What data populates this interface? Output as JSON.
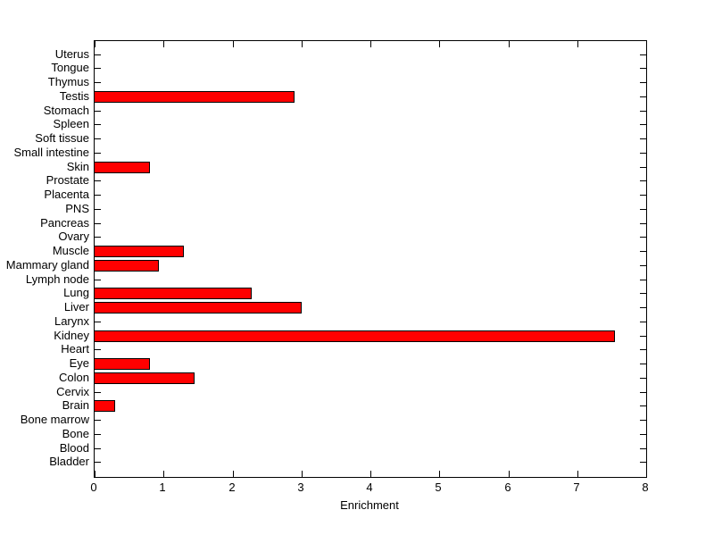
{
  "figure": {
    "background_color": "#FFFFFF",
    "axis_color": "#000000"
  },
  "chart_data": {
    "type": "bar",
    "orientation": "horizontal",
    "title": "",
    "xlabel": "Enrichment",
    "ylabel": "",
    "xlim": [
      0,
      8
    ],
    "xticks": [
      0,
      1,
      2,
      3,
      4,
      5,
      6,
      7,
      8
    ],
    "grid": false,
    "legend": "none",
    "bar_color": "#FF0000",
    "bar_edge_color": "#000000",
    "categories": [
      "Uterus",
      "Tongue",
      "Thymus",
      "Testis",
      "Stomach",
      "Spleen",
      "Soft tissue",
      "Small intestine",
      "Skin",
      "Prostate",
      "Placenta",
      "PNS",
      "Pancreas",
      "Ovary",
      "Muscle",
      "Mammary gland",
      "Lymph node",
      "Lung",
      "Liver",
      "Larynx",
      "Kidney",
      "Heart",
      "Eye",
      "Colon",
      "Cervix",
      "Brain",
      "Bone marrow",
      "Bone",
      "Blood",
      "Bladder"
    ],
    "values": [
      0,
      0,
      0,
      2.9,
      0,
      0,
      0,
      0,
      0.8,
      0,
      0,
      0,
      0,
      0,
      1.3,
      0.93,
      0,
      2.28,
      3.0,
      0,
      7.55,
      0,
      0.8,
      1.45,
      0,
      0.3,
      0,
      0,
      0,
      0
    ]
  }
}
